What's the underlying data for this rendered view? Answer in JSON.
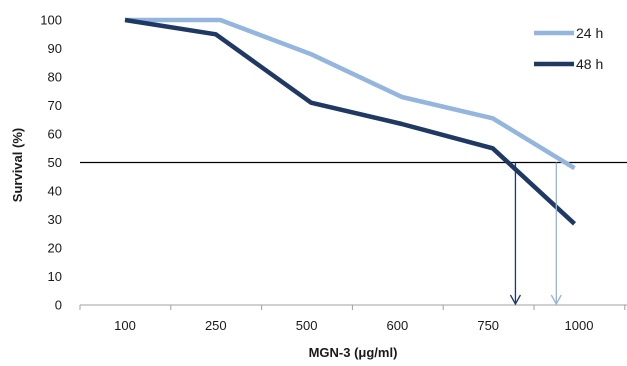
{
  "chart_data": {
    "type": "line",
    "xlabel": "MGN-3 (μg/ml)",
    "ylabel": "Survival (%)",
    "categories": [
      "100",
      "250",
      "500",
      "600",
      "750",
      "1000"
    ],
    "ylim": [
      0,
      100
    ],
    "yticks": [
      0,
      10,
      20,
      30,
      40,
      50,
      60,
      70,
      80,
      90,
      100
    ],
    "grid": false,
    "legend_position": "top-right",
    "series": [
      {
        "name": "24 h",
        "color": "#93b5de",
        "points": [
          [
            0,
            100
          ],
          [
            1.05,
            100
          ],
          [
            2.05,
            88
          ],
          [
            3.05,
            73
          ],
          [
            4.05,
            65.5
          ],
          [
            4.95,
            48
          ]
        ]
      },
      {
        "name": "48 h",
        "color": "#1f3864",
        "points": [
          [
            0,
            100
          ],
          [
            1,
            95
          ],
          [
            2.05,
            71
          ],
          [
            3.05,
            63.5
          ],
          [
            4.05,
            55
          ],
          [
            4.95,
            28.5
          ]
        ]
      }
    ],
    "reference_line": {
      "y": 50,
      "color": "#000000"
    },
    "arrows": [
      {
        "series": "48 h",
        "x_index": 4.3,
        "y_from": 50,
        "y_to": 0,
        "color": "#1f3864"
      },
      {
        "series": "24 h",
        "x_index": 4.75,
        "y_from": 50,
        "y_to": 0,
        "color": "#93b5de"
      }
    ]
  }
}
